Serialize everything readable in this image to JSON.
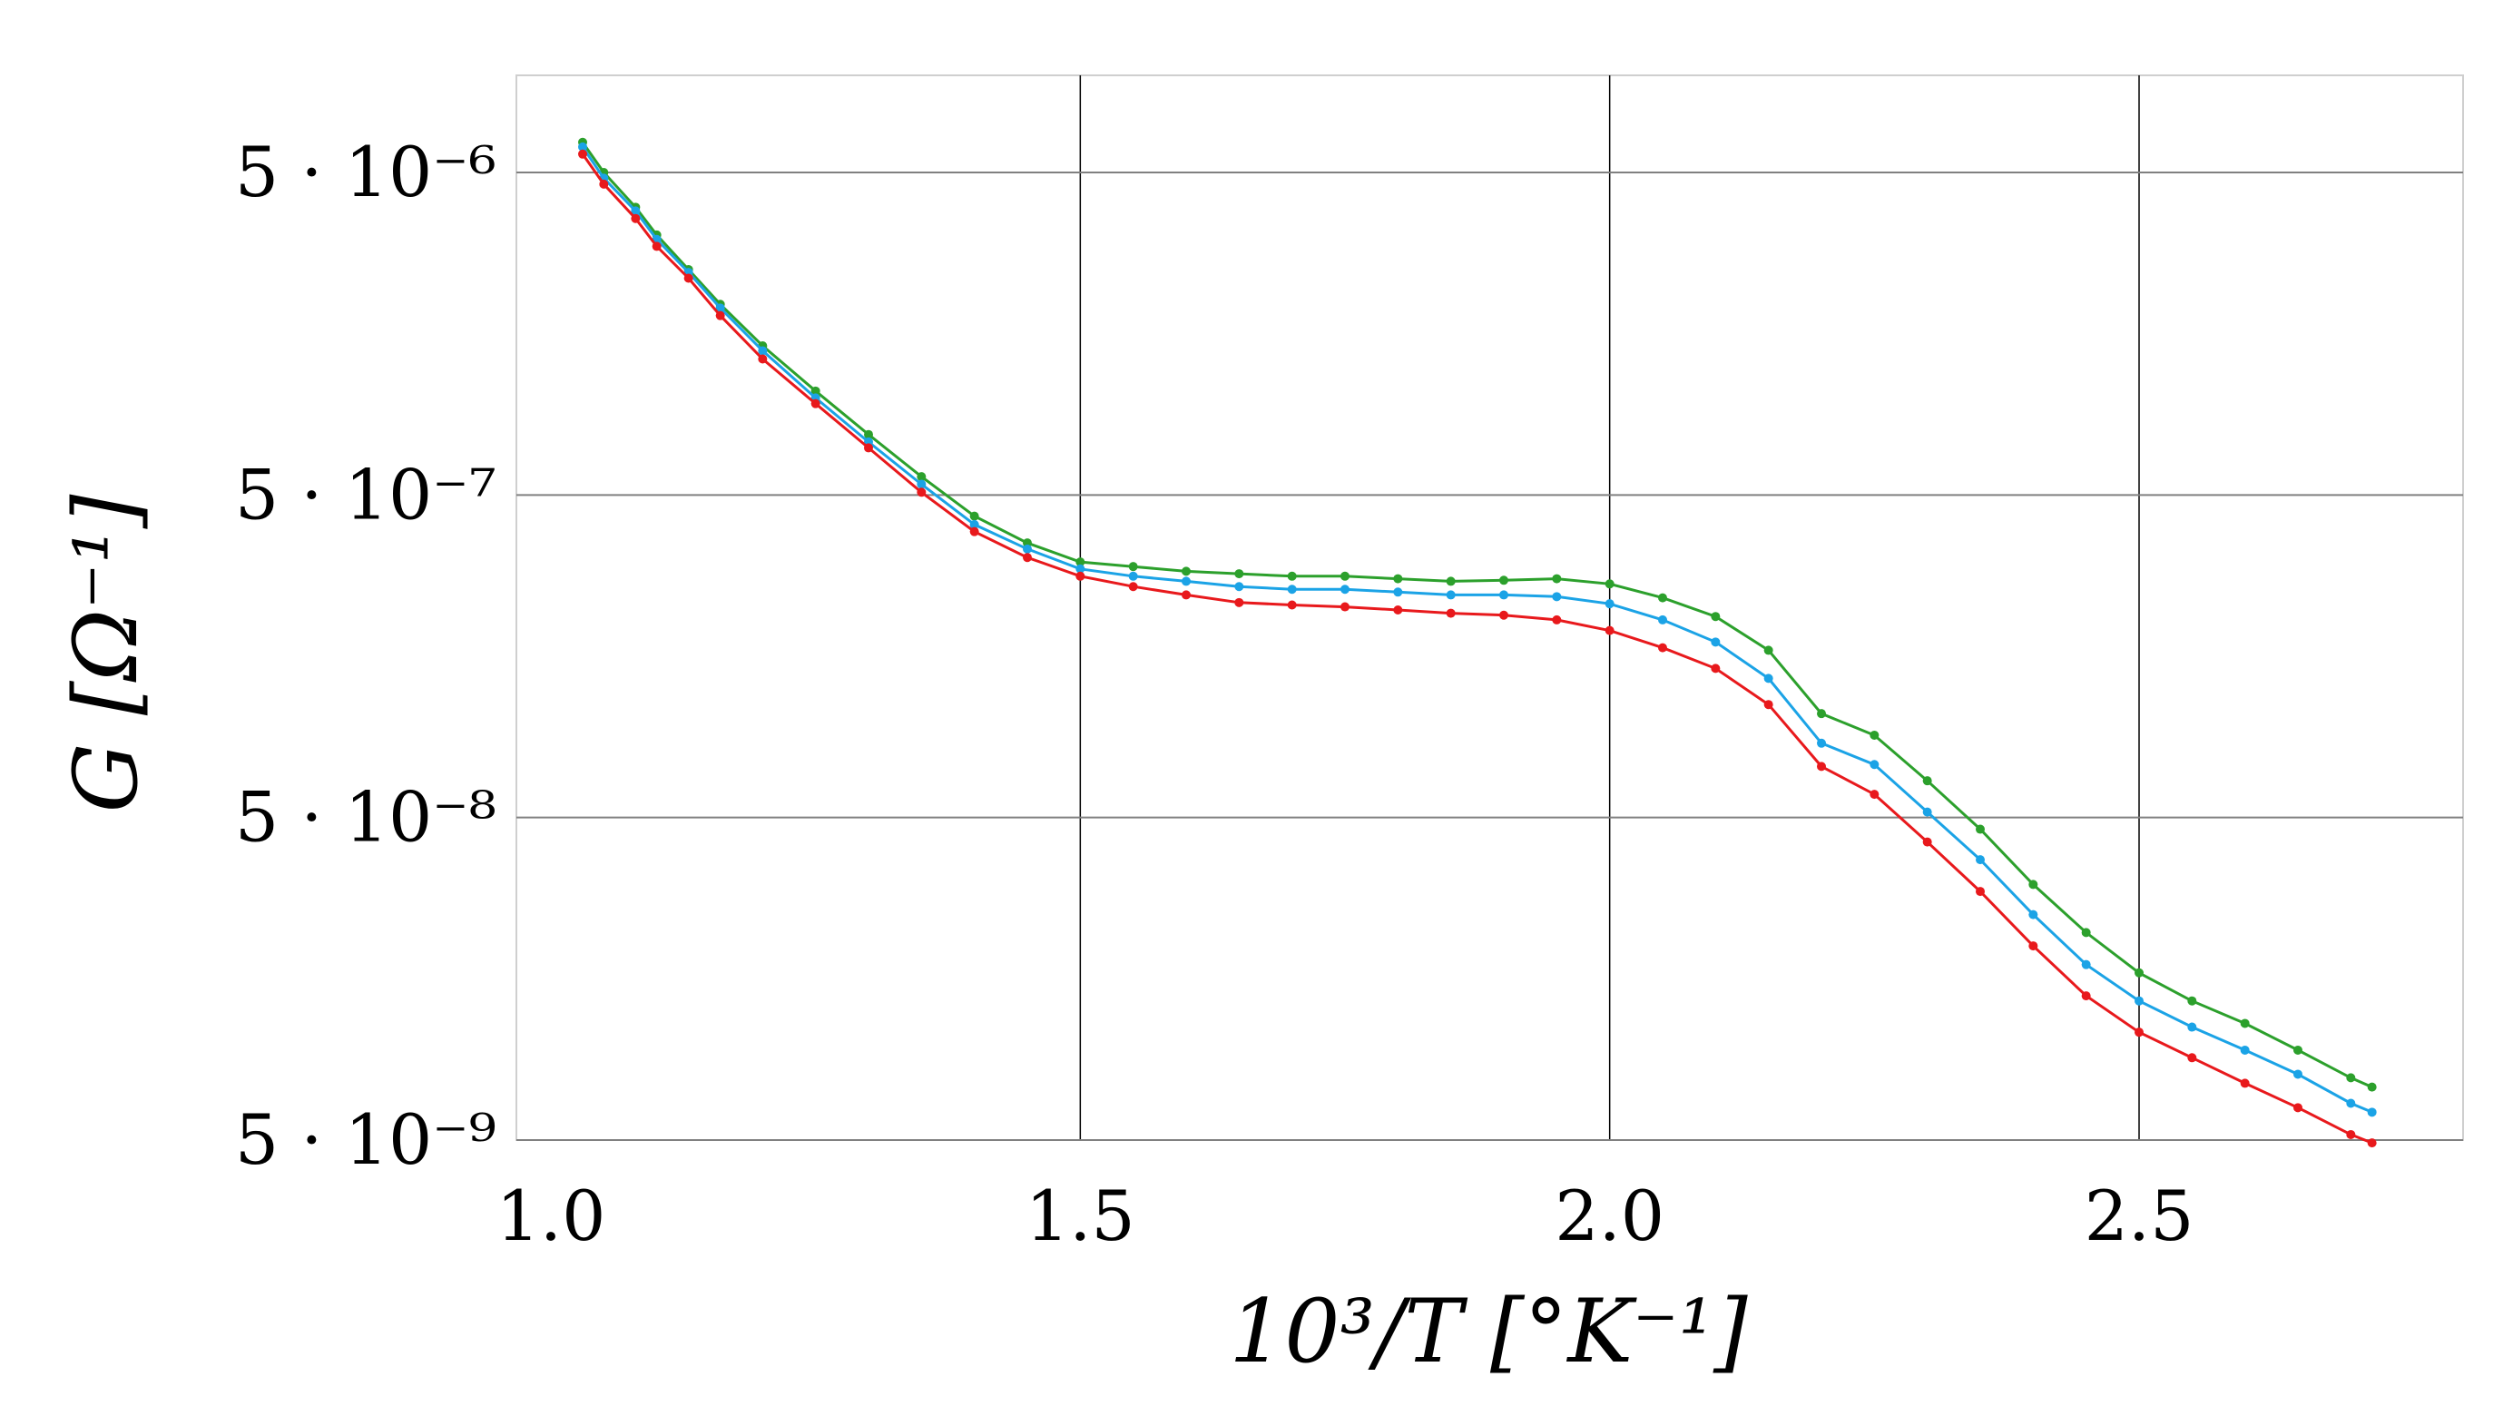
{
  "chart_data": {
    "type": "line",
    "title": "",
    "xlabel": "10³/T   [°K⁻¹]",
    "ylabel": "G   [Ω⁻¹]",
    "xlim": [
      0.95,
      2.8
    ],
    "ylim": [
      5e-09,
      8e-06
    ],
    "yscale": "log",
    "grid": true,
    "x_ticks": [
      {
        "value": 1.0,
        "label": "1.0"
      },
      {
        "value": 1.5,
        "label": "1.5"
      },
      {
        "value": 2.0,
        "label": "2.0"
      },
      {
        "value": 2.5,
        "label": "2.5"
      }
    ],
    "y_ticks": [
      {
        "value": 5e-06,
        "label": "5 · 10⁻⁶"
      },
      {
        "value": 5e-07,
        "label": "5 · 10⁻⁷"
      },
      {
        "value": 5e-08,
        "label": "5 · 10⁻⁸"
      },
      {
        "value": 5e-09,
        "label": "5 · 10⁻⁹"
      }
    ],
    "series": [
      {
        "color": "#2ca02c",
        "points": [
          [
            1.03,
            6.2e-06
          ],
          [
            1.05,
            5e-06
          ],
          [
            1.08,
            3.9e-06
          ],
          [
            1.1,
            3.2e-06
          ],
          [
            1.13,
            2.5e-06
          ],
          [
            1.16,
            1.95e-06
          ],
          [
            1.2,
            1.45e-06
          ],
          [
            1.25,
            1.05e-06
          ],
          [
            1.3,
            7.7e-07
          ],
          [
            1.35,
            5.7e-07
          ],
          [
            1.4,
            4.3e-07
          ],
          [
            1.45,
            3.55e-07
          ],
          [
            1.5,
            3.1e-07
          ],
          [
            1.55,
            3e-07
          ],
          [
            1.6,
            2.9e-07
          ],
          [
            1.65,
            2.85e-07
          ],
          [
            1.7,
            2.8e-07
          ],
          [
            1.75,
            2.8e-07
          ],
          [
            1.8,
            2.75e-07
          ],
          [
            1.85,
            2.7e-07
          ],
          [
            1.9,
            2.72e-07
          ],
          [
            1.95,
            2.75e-07
          ],
          [
            2.0,
            2.65e-07
          ],
          [
            2.05,
            2.4e-07
          ],
          [
            2.1,
            2.1e-07
          ],
          [
            2.15,
            1.65e-07
          ],
          [
            2.2,
            1.05e-07
          ],
          [
            2.25,
            9e-08
          ],
          [
            2.3,
            6.5e-08
          ],
          [
            2.35,
            4.6e-08
          ],
          [
            2.4,
            3.1e-08
          ],
          [
            2.45,
            2.2e-08
          ],
          [
            2.5,
            1.65e-08
          ],
          [
            2.55,
            1.35e-08
          ],
          [
            2.6,
            1.15e-08
          ],
          [
            2.65,
            9.5e-09
          ],
          [
            2.7,
            7.8e-09
          ],
          [
            2.72,
            7.3e-09
          ]
        ]
      },
      {
        "color": "#1ba3e6",
        "points": [
          [
            1.03,
            6e-06
          ],
          [
            1.05,
            4.8e-06
          ],
          [
            1.08,
            3.8e-06
          ],
          [
            1.1,
            3.1e-06
          ],
          [
            1.13,
            2.45e-06
          ],
          [
            1.16,
            1.9e-06
          ],
          [
            1.2,
            1.4e-06
          ],
          [
            1.25,
            1e-06
          ],
          [
            1.3,
            7.3e-07
          ],
          [
            1.35,
            5.4e-07
          ],
          [
            1.4,
            4.05e-07
          ],
          [
            1.45,
            3.4e-07
          ],
          [
            1.5,
            2.95e-07
          ],
          [
            1.55,
            2.8e-07
          ],
          [
            1.6,
            2.7e-07
          ],
          [
            1.65,
            2.6e-07
          ],
          [
            1.7,
            2.55e-07
          ],
          [
            1.75,
            2.55e-07
          ],
          [
            1.8,
            2.5e-07
          ],
          [
            1.85,
            2.45e-07
          ],
          [
            1.9,
            2.45e-07
          ],
          [
            1.95,
            2.42e-07
          ],
          [
            2.0,
            2.3e-07
          ],
          [
            2.05,
            2.05e-07
          ],
          [
            2.1,
            1.75e-07
          ],
          [
            2.15,
            1.35e-07
          ],
          [
            2.2,
            8.5e-08
          ],
          [
            2.25,
            7.3e-08
          ],
          [
            2.3,
            5.2e-08
          ],
          [
            2.35,
            3.7e-08
          ],
          [
            2.4,
            2.5e-08
          ],
          [
            2.45,
            1.75e-08
          ],
          [
            2.5,
            1.35e-08
          ],
          [
            2.55,
            1.12e-08
          ],
          [
            2.6,
            9.5e-09
          ],
          [
            2.65,
            8e-09
          ],
          [
            2.7,
            6.5e-09
          ],
          [
            2.72,
            6.1e-09
          ]
        ]
      },
      {
        "color": "#e8191c",
        "points": [
          [
            1.03,
            5.7e-06
          ],
          [
            1.05,
            4.6e-06
          ],
          [
            1.08,
            3.6e-06
          ],
          [
            1.1,
            2.95e-06
          ],
          [
            1.13,
            2.35e-06
          ],
          [
            1.16,
            1.8e-06
          ],
          [
            1.2,
            1.32e-06
          ],
          [
            1.25,
            9.6e-07
          ],
          [
            1.3,
            7e-07
          ],
          [
            1.35,
            5.1e-07
          ],
          [
            1.4,
            3.85e-07
          ],
          [
            1.45,
            3.2e-07
          ],
          [
            1.5,
            2.8e-07
          ],
          [
            1.55,
            2.6e-07
          ],
          [
            1.6,
            2.45e-07
          ],
          [
            1.65,
            2.32e-07
          ],
          [
            1.7,
            2.28e-07
          ],
          [
            1.75,
            2.25e-07
          ],
          [
            1.8,
            2.2e-07
          ],
          [
            1.85,
            2.15e-07
          ],
          [
            1.9,
            2.12e-07
          ],
          [
            1.95,
            2.05e-07
          ],
          [
            2.0,
            1.9e-07
          ],
          [
            2.05,
            1.68e-07
          ],
          [
            2.1,
            1.45e-07
          ],
          [
            2.15,
            1.12e-07
          ],
          [
            2.2,
            7.2e-08
          ],
          [
            2.25,
            5.9e-08
          ],
          [
            2.3,
            4.2e-08
          ],
          [
            2.35,
            2.95e-08
          ],
          [
            2.4,
            2e-08
          ],
          [
            2.45,
            1.4e-08
          ],
          [
            2.5,
            1.08e-08
          ],
          [
            2.55,
            9e-09
          ],
          [
            2.6,
            7.5e-09
          ],
          [
            2.65,
            6.3e-09
          ],
          [
            2.7,
            5.2e-09
          ],
          [
            2.72,
            4.9e-09
          ]
        ]
      }
    ]
  }
}
